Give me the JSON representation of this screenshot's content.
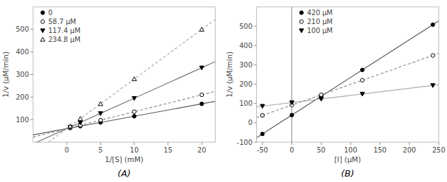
{
  "chart_data": [
    {
      "type": "scatter",
      "title": "(A)",
      "x_label": "1/[S] (mM)",
      "y_label": "1/v (μM/min)",
      "xlim": [
        -5,
        22
      ],
      "ylim": [
        0,
        600
      ],
      "xticks": [
        0,
        5,
        10,
        15,
        20
      ],
      "yticks": [
        100,
        200,
        300,
        400,
        500
      ],
      "grid": false,
      "legend": "upper left",
      "series": [
        {
          "name": "0",
          "marker": "circle",
          "line_style": "solid",
          "color": "#555555",
          "x": [
            0.5,
            2,
            5,
            10,
            20
          ],
          "values": [
            62.75,
            71,
            87.5,
            115,
            170
          ]
        },
        {
          "name": "58.7 μM",
          "marker": "circle-open",
          "line_style": "dashed",
          "color": "#888888",
          "x": [
            0.5,
            2,
            5,
            10,
            20
          ],
          "values": [
            63.75,
            75,
            97.5,
            135,
            210
          ]
        },
        {
          "name": "117.4 μM",
          "marker": "triangle-down",
          "line_style": "solid",
          "color": "#777777",
          "x": [
            0.5,
            2,
            5,
            10,
            20
          ],
          "values": [
            66.75,
            87,
            127.5,
            195,
            330
          ]
        },
        {
          "name": "234.8 μM",
          "marker": "triangle-up-open",
          "line_style": "dashed",
          "color": "#aaaaaa",
          "x": [
            0.5,
            2,
            5,
            10,
            20
          ],
          "values": [
            71,
            104,
            170,
            280,
            500
          ]
        }
      ]
    },
    {
      "type": "scatter",
      "title": "(B)",
      "x_label": "[I] (μM)",
      "y_label": "1/v (μM/min)",
      "xlim": [
        -60,
        250
      ],
      "ylim": [
        -100,
        600
      ],
      "xticks": [
        -50,
        0,
        50,
        100,
        150,
        200,
        250
      ],
      "yticks": [
        -100,
        0,
        100,
        200,
        300,
        400,
        500
      ],
      "grid": false,
      "legend": "upper left",
      "vline_x": 0,
      "series": [
        {
          "name": "420 μM",
          "marker": "circle",
          "line_style": "solid",
          "color": "#555555",
          "x": [
            -50,
            0,
            50,
            120,
            240
          ],
          "values": [
            -57.5,
            40,
            137.5,
            274,
            508
          ]
        },
        {
          "name": "210 μM",
          "marker": "circle-open",
          "line_style": "dashed",
          "color": "#888888",
          "x": [
            -50,
            0,
            50,
            120,
            240
          ],
          "values": [
            38.5,
            92,
            145.5,
            220.4,
            348.8
          ]
        },
        {
          "name": "100 μM",
          "marker": "triangle-down",
          "line_style": "solid",
          "color": "#aaaaaa",
          "x": [
            -50,
            0,
            50,
            120,
            240
          ],
          "values": [
            86.5,
            105,
            123.5,
            149.4,
            193.8
          ]
        }
      ]
    }
  ]
}
